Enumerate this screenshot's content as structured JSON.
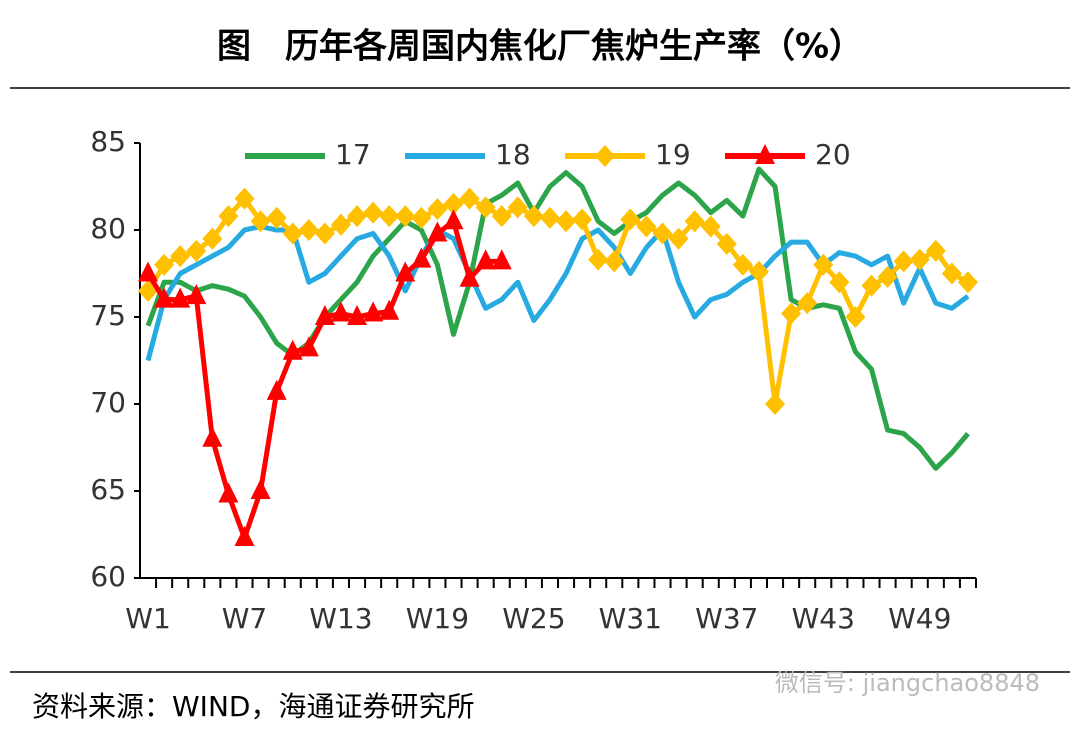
{
  "chart_data": {
    "type": "line",
    "title": "图　历年各周国内焦化厂焦炉生产率（%）",
    "source": "资料来源：WIND，海通证券研究所",
    "watermark": "微信号: jiangchao8848",
    "categories": [
      "W1",
      null,
      null,
      null,
      null,
      null,
      "W7",
      null,
      null,
      null,
      null,
      null,
      "W13",
      null,
      null,
      null,
      null,
      null,
      "W19",
      null,
      null,
      null,
      null,
      null,
      "W25",
      null,
      null,
      null,
      null,
      null,
      "W31",
      null,
      null,
      null,
      null,
      null,
      "W37",
      null,
      null,
      null,
      null,
      null,
      "W43",
      null,
      null,
      null,
      null,
      null,
      "W49",
      null,
      null,
      null
    ],
    "ylim": [
      60,
      85
    ],
    "yticks": [
      60,
      65,
      70,
      75,
      80,
      85
    ],
    "grid": false,
    "legend": "top",
    "series": [
      {
        "name": "17",
        "color": "#2ca44a",
        "marker": "none",
        "values": [
          74.5,
          77,
          77,
          76.5,
          76.8,
          76.6,
          76.2,
          75,
          73.5,
          72.8,
          73.5,
          75,
          76,
          77,
          78.5,
          79.5,
          80.5,
          80,
          78,
          74,
          77,
          81.5,
          82,
          82.7,
          81,
          82.5,
          83.3,
          82.5,
          80.5,
          79.8,
          80.5,
          81,
          82,
          82.7,
          82,
          81,
          81.7,
          80.8,
          83.5,
          82.5,
          76,
          75.5,
          75.7,
          75.5,
          73,
          72,
          68.5,
          68.3,
          67.5,
          66.3,
          67.2,
          68.3
        ]
      },
      {
        "name": "18",
        "color": "#27aae1",
        "marker": "none",
        "values": [
          72.5,
          76,
          77.5,
          78,
          78.5,
          79,
          80,
          80.2,
          80,
          80,
          77,
          77.5,
          78.5,
          79.5,
          79.8,
          78.5,
          76.5,
          78.5,
          80,
          79.5,
          77.5,
          75.5,
          76,
          77,
          74.8,
          76,
          77.5,
          79.5,
          80,
          79,
          77.5,
          79,
          80,
          77,
          75,
          76,
          76.3,
          77,
          77.5,
          78.5,
          79.3,
          79.3,
          78,
          78.7,
          78.5,
          78,
          78.5,
          75.8,
          77.8,
          75.8,
          75.5,
          76.2
        ]
      },
      {
        "name": "19",
        "color": "#ffc000",
        "marker": "diamond",
        "values": [
          76.5,
          78,
          78.5,
          78.8,
          79.5,
          80.8,
          81.8,
          80.5,
          80.7,
          79.8,
          80,
          79.8,
          80.3,
          80.8,
          81,
          80.8,
          80.8,
          80.7,
          81.2,
          81.5,
          81.8,
          81.3,
          80.8,
          81.3,
          80.8,
          80.7,
          80.5,
          80.6,
          78.3,
          78.2,
          80.6,
          80.2,
          79.8,
          79.5,
          80.5,
          80.2,
          79.2,
          78,
          77.6,
          70,
          75.2,
          75.8,
          78,
          77,
          75,
          76.8,
          77.3,
          78.2,
          78.3,
          78.8,
          77.5,
          77
        ]
      },
      {
        "name": "20",
        "color": "#ff0000",
        "marker": "triangle",
        "values": [
          77.5,
          76,
          76,
          76.2,
          68,
          64.8,
          62.3,
          65,
          70.7,
          73,
          73.2,
          75,
          75.2,
          75,
          75.2,
          75.3,
          77.5,
          78.3,
          79.8,
          80.5,
          77.2,
          78.2,
          78.2,
          null,
          null,
          null,
          null,
          null,
          null,
          null,
          null,
          null,
          null,
          null,
          null,
          null,
          null,
          null,
          null,
          null,
          null,
          null,
          null,
          null,
          null,
          null,
          null,
          null,
          null,
          null,
          null,
          null
        ]
      }
    ]
  }
}
